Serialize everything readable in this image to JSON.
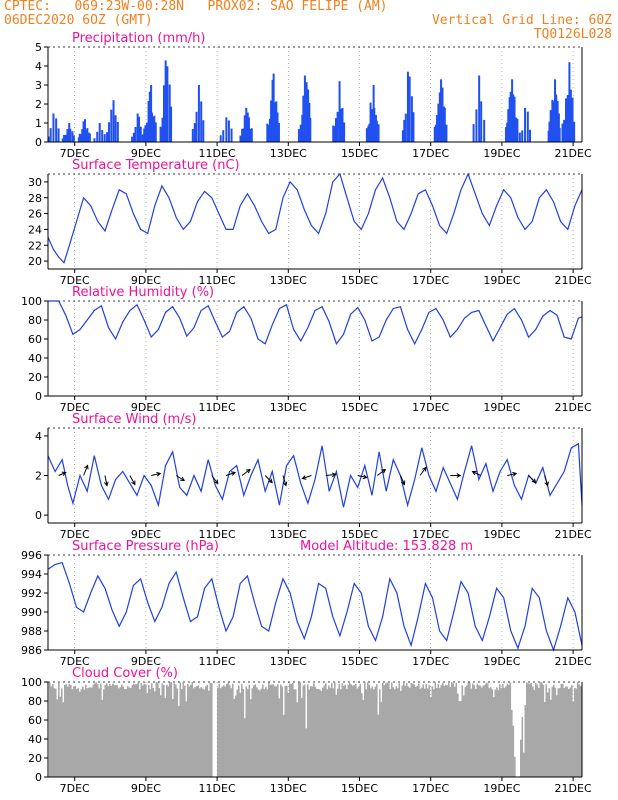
{
  "header": {
    "line1_left": "CPTEC:   069:23W-00:28N   PROX02: SAO FELIPE (AM)",
    "line2_left": "06DEC2020 6OZ (GMT)",
    "line2_right": "Vertical Grid Line: 60Z",
    "line3_right": "TQ0126L028",
    "color": "#f08020"
  },
  "colors": {
    "title": "#ee1199",
    "series": "#2040e0",
    "bars": "#2050f0",
    "cloud": "#a8a8a8",
    "axis": "#000000"
  },
  "x_ticks": [
    "7DEC",
    "9DEC",
    "11DEC",
    "13DEC",
    "15DEC",
    "17DEC",
    "19DEC",
    "21DEC"
  ],
  "panels": [
    {
      "title": "Precipitation (mm/h)",
      "yticks": [
        "0",
        "1",
        "2",
        "3",
        "4",
        "5"
      ]
    },
    {
      "title": "Surface Temperature (nC)",
      "yticks": [
        "20",
        "22",
        "24",
        "26",
        "28",
        "30"
      ]
    },
    {
      "title": "Relative Humidity (%)",
      "yticks": [
        "0",
        "20",
        "40",
        "60",
        "80",
        "100"
      ]
    },
    {
      "title": "Surface Wind (m/s)",
      "yticks": [
        "0",
        "2",
        "4"
      ]
    },
    {
      "title": "Surface Pressure (hPa)",
      "extra": "Model Altitude: 153.828 m",
      "yticks": [
        "986",
        "988",
        "990",
        "992",
        "994",
        "996"
      ]
    },
    {
      "title": "Cloud Cover (%)",
      "yticks": [
        "0",
        "20",
        "40",
        "60",
        "80",
        "100"
      ]
    }
  ],
  "chart_data": [
    {
      "type": "bar",
      "title": "Precipitation (mm/h)",
      "ylim": [
        0,
        5
      ],
      "x_unit": "days since 06DEC2020 06Z",
      "bursts": [
        {
          "day": 0.15,
          "peak": 1.5
        },
        {
          "day": 0.55,
          "peak": 1.0
        },
        {
          "day": 1.0,
          "peak": 1.2
        },
        {
          "day": 1.45,
          "peak": 1.0
        },
        {
          "day": 1.8,
          "peak": 2.2
        },
        {
          "day": 2.5,
          "peak": 1.5
        },
        {
          "day": 2.85,
          "peak": 3.0
        },
        {
          "day": 3.3,
          "peak": 4.3
        },
        {
          "day": 4.2,
          "peak": 3.0
        },
        {
          "day": 5.0,
          "peak": 1.3
        },
        {
          "day": 5.55,
          "peak": 1.8
        },
        {
          "day": 6.3,
          "peak": 3.6
        },
        {
          "day": 7.2,
          "peak": 3.5
        },
        {
          "day": 8.15,
          "peak": 3.2
        },
        {
          "day": 9.1,
          "peak": 3.0
        },
        {
          "day": 10.1,
          "peak": 3.7
        },
        {
          "day": 11.0,
          "peak": 3.3
        },
        {
          "day": 12.1,
          "peak": 3.5
        },
        {
          "day": 13.0,
          "peak": 3.3
        },
        {
          "day": 13.4,
          "peak": 1.8
        },
        {
          "day": 14.2,
          "peak": 3.3
        },
        {
          "day": 14.6,
          "peak": 4.2
        }
      ]
    },
    {
      "type": "line",
      "title": "Surface Temperature (nC)",
      "ylim": [
        19,
        31
      ],
      "x": [
        0,
        0.15,
        0.3,
        0.45,
        0.6,
        0.8,
        1.0,
        1.2,
        1.4,
        1.6,
        1.8,
        2.0,
        2.2,
        2.4,
        2.6,
        2.8,
        3.0,
        3.2,
        3.4,
        3.6,
        3.8,
        4.0,
        4.2,
        4.4,
        4.6,
        4.8,
        5.0,
        5.2,
        5.4,
        5.6,
        5.8,
        6.0,
        6.2,
        6.4,
        6.6,
        6.8,
        7.0,
        7.2,
        7.4,
        7.6,
        7.8,
        8.0,
        8.2,
        8.4,
        8.6,
        8.8,
        9.0,
        9.2,
        9.4,
        9.6,
        9.8,
        10.0,
        10.2,
        10.4,
        10.6,
        10.8,
        11.0,
        11.2,
        11.4,
        11.6,
        11.8,
        12.0,
        12.2,
        12.4,
        12.6,
        12.8,
        13.0,
        13.2,
        13.4,
        13.6,
        13.8,
        14.0,
        14.2,
        14.4,
        14.6,
        14.8,
        15.0
      ],
      "y": [
        23,
        21.5,
        20.5,
        19.8,
        22,
        25,
        28,
        27,
        25,
        23.8,
        26.5,
        29,
        28.5,
        26,
        24,
        23.5,
        27,
        29.5,
        28,
        25.5,
        24,
        25,
        27.5,
        28.8,
        28,
        26,
        24,
        24,
        27,
        28.5,
        27,
        25,
        23.5,
        24,
        28,
        30,
        29,
        26.5,
        24.5,
        23.5,
        26,
        30,
        31,
        28,
        25,
        24,
        26,
        29,
        30.5,
        28,
        25,
        24,
        26,
        28.5,
        29,
        27,
        24.5,
        23.5,
        26,
        29,
        31,
        28.5,
        26,
        24.5,
        27,
        29,
        28,
        25.5,
        24,
        25,
        28,
        29,
        27.5,
        25,
        24,
        27,
        29
      ]
    },
    {
      "type": "line",
      "title": "Relative Humidity (%)",
      "ylim": [
        0,
        100
      ],
      "x": [
        0,
        0.15,
        0.3,
        0.5,
        0.7,
        0.9,
        1.1,
        1.3,
        1.5,
        1.7,
        1.9,
        2.1,
        2.3,
        2.5,
        2.7,
        2.9,
        3.1,
        3.3,
        3.5,
        3.7,
        3.9,
        4.1,
        4.3,
        4.5,
        4.7,
        4.9,
        5.1,
        5.3,
        5.5,
        5.7,
        5.9,
        6.1,
        6.3,
        6.5,
        6.7,
        6.9,
        7.1,
        7.3,
        7.5,
        7.7,
        7.9,
        8.1,
        8.3,
        8.5,
        8.7,
        8.9,
        9.1,
        9.3,
        9.5,
        9.7,
        9.9,
        10.1,
        10.3,
        10.5,
        10.7,
        10.9,
        11.1,
        11.3,
        11.5,
        11.7,
        11.9,
        12.1,
        12.3,
        12.5,
        12.7,
        12.9,
        13.1,
        13.3,
        13.5,
        13.7,
        13.9,
        14.1,
        14.3,
        14.5,
        14.7,
        14.9,
        15.0
      ],
      "y": [
        100,
        100,
        100,
        85,
        65,
        70,
        80,
        90,
        95,
        72,
        60,
        78,
        90,
        96,
        80,
        62,
        70,
        88,
        94,
        82,
        63,
        72,
        90,
        95,
        78,
        62,
        68,
        88,
        94,
        82,
        60,
        55,
        75,
        92,
        96,
        70,
        58,
        72,
        90,
        94,
        78,
        55,
        65,
        86,
        93,
        80,
        58,
        62,
        80,
        92,
        94,
        70,
        55,
        70,
        88,
        92,
        80,
        62,
        70,
        82,
        88,
        90,
        74,
        58,
        72,
        86,
        92,
        80,
        62,
        70,
        84,
        90,
        85,
        62,
        60,
        82,
        83
      ]
    },
    {
      "type": "line",
      "title": "Surface Wind (m/s)",
      "ylim": [
        -0.4,
        4.4
      ],
      "x": [
        0,
        0.2,
        0.4,
        0.55,
        0.7,
        0.9,
        1.1,
        1.3,
        1.5,
        1.7,
        1.9,
        2.1,
        2.3,
        2.5,
        2.7,
        2.9,
        3.1,
        3.3,
        3.5,
        3.7,
        3.9,
        4.1,
        4.3,
        4.5,
        4.7,
        4.9,
        5.1,
        5.3,
        5.5,
        5.7,
        5.9,
        6.1,
        6.3,
        6.5,
        6.7,
        6.9,
        7.1,
        7.3,
        7.5,
        7.7,
        7.9,
        8.1,
        8.3,
        8.5,
        8.7,
        8.9,
        9.1,
        9.3,
        9.5,
        9.7,
        9.9,
        10.1,
        10.3,
        10.5,
        10.7,
        10.9,
        11.1,
        11.3,
        11.5,
        11.7,
        11.9,
        12.1,
        12.3,
        12.5,
        12.7,
        12.9,
        13.1,
        13.3,
        13.5,
        13.7,
        13.9,
        14.1,
        14.3,
        14.5,
        14.7,
        14.9,
        15.0
      ],
      "y": [
        3,
        2.2,
        2.8,
        1.5,
        0.6,
        2,
        1.2,
        3,
        1.5,
        0.8,
        1.8,
        2.2,
        1.6,
        1,
        2,
        1.5,
        0.5,
        2.5,
        3.2,
        1.4,
        1,
        2,
        1.2,
        2.8,
        1.5,
        0.8,
        2.2,
        2.5,
        1,
        2,
        2.8,
        1.2,
        2.2,
        0.5,
        2.5,
        3,
        1.6,
        0.6,
        1.8,
        3.5,
        1.2,
        2.2,
        0.4,
        2,
        1.4,
        2.5,
        1,
        3.2,
        1.2,
        2.8,
        2,
        0.5,
        1.8,
        3.4,
        2,
        1.2,
        2.4,
        1.6,
        0.8,
        2.2,
        3.5,
        1.8,
        2.6,
        1.2,
        2.2,
        2.8,
        1.5,
        0.8,
        2,
        1.6,
        2.4,
        1,
        1.6,
        2.2,
        3.4,
        3.6,
        0.5
      ],
      "arrows": [
        {
          "day": 0.3,
          "speed": 2,
          "dx": 0.7,
          "dy": -0.3
        },
        {
          "day": 1.0,
          "speed": 2,
          "dx": 0.4,
          "dy": -1
        },
        {
          "day": 1.6,
          "speed": 2,
          "dx": 0.2,
          "dy": 1
        },
        {
          "day": 2.3,
          "speed": 2,
          "dx": 0.5,
          "dy": 0.9
        },
        {
          "day": 2.9,
          "speed": 2,
          "dx": 0.9,
          "dy": -0.2
        },
        {
          "day": 3.6,
          "speed": 2,
          "dx": 0.8,
          "dy": 0.5
        },
        {
          "day": 4.6,
          "speed": 2,
          "dx": 0.6,
          "dy": 0.8
        },
        {
          "day": 5.0,
          "speed": 2,
          "dx": 0.9,
          "dy": -0.3
        },
        {
          "day": 5.45,
          "speed": 2,
          "dx": 0.8,
          "dy": -0.6
        },
        {
          "day": 6.1,
          "speed": 2,
          "dx": 0.7,
          "dy": 0.7
        },
        {
          "day": 6.6,
          "speed": 2,
          "dx": 0.3,
          "dy": 1
        },
        {
          "day": 7.4,
          "speed": 2,
          "dx": -0.9,
          "dy": 0.3
        },
        {
          "day": 7.8,
          "speed": 2,
          "dx": 1,
          "dy": -0.1
        },
        {
          "day": 8.7,
          "speed": 2,
          "dx": 0.9,
          "dy": 0.2
        },
        {
          "day": 9.25,
          "speed": 2,
          "dx": 0.8,
          "dy": -0.6
        },
        {
          "day": 9.9,
          "speed": 2,
          "dx": 0.4,
          "dy": 0.9
        },
        {
          "day": 10.45,
          "speed": 2,
          "dx": 0.6,
          "dy": -0.8
        },
        {
          "day": 11.3,
          "speed": 2,
          "dx": 1,
          "dy": 0
        },
        {
          "day": 12.15,
          "speed": 2,
          "dx": -0.8,
          "dy": -0.4
        },
        {
          "day": 12.9,
          "speed": 2,
          "dx": 0.9,
          "dy": -0.2
        },
        {
          "day": 13.5,
          "speed": 2,
          "dx": 0.7,
          "dy": 0.7
        },
        {
          "day": 13.95,
          "speed": 2,
          "dx": 0.3,
          "dy": 1
        }
      ]
    },
    {
      "type": "line",
      "title": "Surface Pressure (hPa)",
      "ylim": [
        986,
        996
      ],
      "x": [
        0,
        0.2,
        0.4,
        0.6,
        0.8,
        1.0,
        1.2,
        1.4,
        1.6,
        1.8,
        2.0,
        2.2,
        2.4,
        2.6,
        2.8,
        3.0,
        3.2,
        3.4,
        3.6,
        3.8,
        4.0,
        4.2,
        4.4,
        4.6,
        4.8,
        5.0,
        5.2,
        5.4,
        5.6,
        5.8,
        6.0,
        6.2,
        6.4,
        6.6,
        6.8,
        7.0,
        7.2,
        7.4,
        7.6,
        7.8,
        8.0,
        8.2,
        8.4,
        8.6,
        8.8,
        9.0,
        9.2,
        9.4,
        9.6,
        9.8,
        10.0,
        10.2,
        10.4,
        10.6,
        10.8,
        11.0,
        11.2,
        11.4,
        11.6,
        11.8,
        12.0,
        12.2,
        12.4,
        12.6,
        12.8,
        13.0,
        13.2,
        13.4,
        13.6,
        13.8,
        14.0,
        14.2,
        14.4,
        14.6,
        14.8,
        15.0
      ],
      "y": [
        994.5,
        995,
        995.2,
        993,
        990.5,
        990,
        992,
        993.8,
        992.5,
        990.2,
        988.5,
        990,
        992.8,
        993.5,
        991,
        989,
        990.5,
        993,
        994.2,
        991.5,
        989,
        989.5,
        992.5,
        993.5,
        990.5,
        988,
        989.5,
        993,
        993.8,
        991,
        988.5,
        988,
        991,
        993.5,
        992,
        989,
        987.2,
        989.5,
        993,
        992.5,
        989.5,
        987.5,
        990,
        993,
        992,
        988.5,
        987,
        989.5,
        993.5,
        992,
        988.5,
        986.5,
        989.5,
        993,
        991.5,
        988,
        987,
        990,
        993.2,
        992,
        988.5,
        987,
        989.5,
        992.5,
        991.5,
        988,
        986.2,
        988.5,
        992.5,
        991.5,
        988,
        986,
        988.5,
        991.5,
        990,
        986.5
      ]
    },
    {
      "type": "area",
      "title": "Cloud Cover (%)",
      "ylim": [
        0,
        100
      ],
      "note": "mostly 92-100% cover with dips to ~80-90% and a gap near 11DEC and ~19DEC"
    }
  ]
}
